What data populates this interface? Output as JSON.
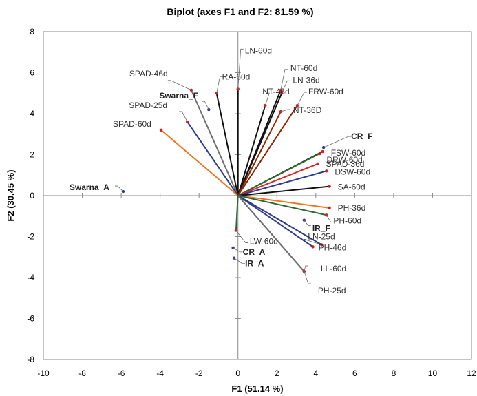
{
  "chart_data": {
    "type": "biplot",
    "title": "Biplot (axes F1 and F2: 81.59 %)",
    "xlabel": "F1 (51.14 %)",
    "ylabel": "F2 (30.45 %)",
    "xlim": [
      -10,
      12
    ],
    "ylim": [
      -8,
      8
    ],
    "xticks": [
      -10,
      -8,
      -6,
      -4,
      -2,
      0,
      2,
      4,
      6,
      8,
      10,
      12
    ],
    "yticks": [
      -8,
      -6,
      -4,
      -2,
      0,
      2,
      4,
      6,
      8
    ],
    "grid": false,
    "legend": "none",
    "colors": {
      "black": "#111111",
      "gray": "#707070",
      "navy": "#2e3a8c",
      "orange": "#ee7722",
      "red": "#dd2222",
      "brown": "#8b2500",
      "darkgreen": "#2f6b2f",
      "point": "#d62020",
      "obs_point": "#2e3a8c"
    },
    "variables": [
      {
        "label": "LN-60d",
        "x": 0.0,
        "y": 5.2,
        "color": "black"
      },
      {
        "label": "RA-60d",
        "x": -1.1,
        "y": 5.0,
        "color": "black"
      },
      {
        "label": "SPAD-46d",
        "x": -2.4,
        "y": 5.15,
        "color": "gray"
      },
      {
        "label": "SPAD-25d",
        "x": -2.6,
        "y": 3.6,
        "color": "navy"
      },
      {
        "label": "SPAD-60d",
        "x": -3.95,
        "y": 3.2,
        "color": "orange"
      },
      {
        "label": "NT-60d",
        "x": 2.2,
        "y": 5.15,
        "color": "black"
      },
      {
        "label": "LN-36d",
        "x": 2.25,
        "y": 5.0,
        "color": "black"
      },
      {
        "label": "NT-46d",
        "x": 1.4,
        "y": 4.4,
        "color": "black"
      },
      {
        "label": "FRW-60d",
        "x": 3.05,
        "y": 4.4,
        "color": "brown"
      },
      {
        "label": "NT-36D",
        "x": 2.2,
        "y": 4.1,
        "color": "brown"
      },
      {
        "label": "FSW-60d",
        "x": 4.35,
        "y": 2.15,
        "color": "black"
      },
      {
        "label": "DRW-60d",
        "x": 4.2,
        "y": 2.05,
        "color": "darkgreen"
      },
      {
        "label": "SPAD-36d",
        "x": 4.1,
        "y": 1.55,
        "color": "red"
      },
      {
        "label": "DSW-60d",
        "x": 4.55,
        "y": 1.2,
        "color": "navy"
      },
      {
        "label": "SA-60d",
        "x": 4.7,
        "y": 0.45,
        "color": "black"
      },
      {
        "label": "PH-36d",
        "x": 4.7,
        "y": -0.6,
        "color": "orange"
      },
      {
        "label": "PH-60d",
        "x": 4.55,
        "y": -0.95,
        "color": "darkgreen"
      },
      {
        "label": "LN-25d",
        "x": 4.3,
        "y": -2.4,
        "color": "navy"
      },
      {
        "label": "PH-46d",
        "x": 3.85,
        "y": -2.5,
        "color": "navy"
      },
      {
        "label": "LL-60d",
        "x": 3.4,
        "y": -3.7,
        "color": "gray"
      },
      {
        "label": "PH-25d",
        "x": 3.4,
        "y": -3.7,
        "color": "gray"
      },
      {
        "label": "LW-60d",
        "x": -0.1,
        "y": -1.7,
        "color": "darkgreen"
      }
    ],
    "observations": [
      {
        "label": "Swarna_A",
        "x": -5.9,
        "y": 0.2
      },
      {
        "label": "Swarna_F",
        "x": -1.5,
        "y": 4.2
      },
      {
        "label": "CR_F",
        "x": 4.4,
        "y": 2.35
      },
      {
        "label": "IR_F",
        "x": 3.4,
        "y": -1.2
      },
      {
        "label": "CR_A",
        "x": -0.25,
        "y": -2.55
      },
      {
        "label": "IR_A",
        "x": -0.2,
        "y": -3.05
      }
    ]
  }
}
